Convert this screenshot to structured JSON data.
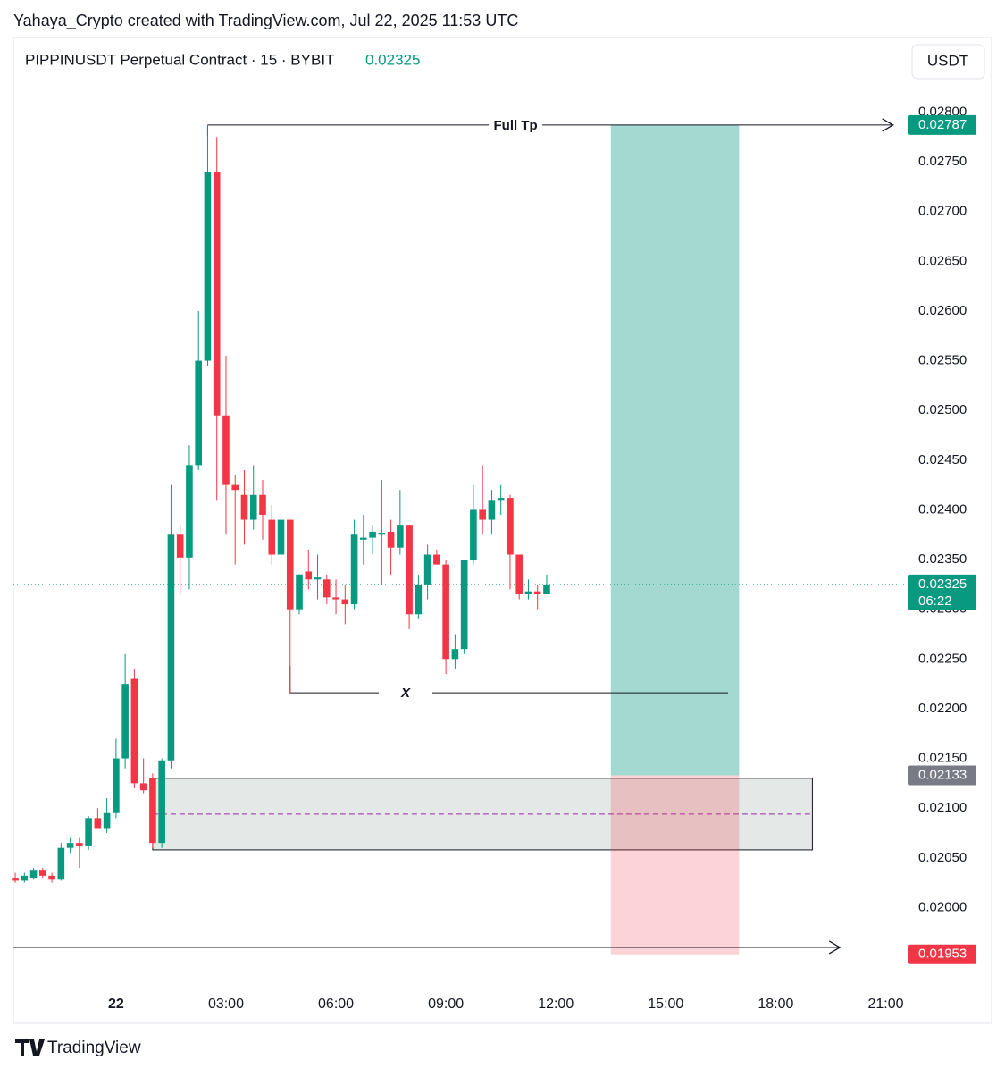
{
  "header": {
    "caption": "Yahaya_Crypto created with TradingView.com, Jul 22, 2025 11:53 UTC"
  },
  "footer": {
    "brand": "TradingView"
  },
  "chart_data": {
    "type": "candlestick",
    "title": "PIPPINUSDT Perpetual Contract · 15 · BYBIT",
    "currency": "USDT",
    "up_color": "#089981",
    "down_color": "#f23645",
    "grid": false,
    "countdown": "06:22",
    "x": [
      -2.75,
      -2.5,
      -2.25,
      -2,
      -1.75,
      -1.5,
      -1.25,
      -1,
      -0.75,
      -0.5,
      -0.25,
      0,
      0.25,
      0.5,
      0.75,
      1,
      1.25,
      1.5,
      1.75,
      2,
      2.25,
      2.5,
      2.75,
      3,
      3.25,
      3.5,
      3.75,
      4,
      4.25,
      4.5,
      4.75,
      5,
      5.25,
      5.5,
      5.75,
      6,
      6.25,
      6.5,
      6.75,
      7,
      7.25,
      7.5,
      7.75,
      8,
      8.25,
      8.5,
      8.75,
      9,
      9.25,
      9.5,
      9.75,
      10,
      10.25,
      10.5,
      10.75,
      11,
      11.25,
      11.5,
      11.75
    ],
    "open": [
      0.0203,
      0.02027,
      0.0203,
      0.02038,
      0.02032,
      0.02028,
      0.0206,
      0.02065,
      0.02062,
      0.0209,
      0.0208,
      0.02095,
      0.0215,
      0.0223,
      0.02125,
      0.0213,
      0.02065,
      0.02148,
      0.02375,
      0.02352,
      0.02445,
      0.0255,
      0.0274,
      0.02495,
      0.02425,
      0.02415,
      0.0239,
      0.02415,
      0.0239,
      0.02355,
      0.0239,
      0.023,
      0.02338,
      0.0233,
      0.0233,
      0.02312,
      0.0231,
      0.02305,
      0.0237,
      0.02372,
      0.02375,
      0.02378,
      0.02362,
      0.02385,
      0.02295,
      0.02325,
      0.02355,
      0.02345,
      0.0225,
      0.0226,
      0.0235,
      0.024,
      0.0239,
      0.0241,
      0.02412,
      0.02355,
      0.02315,
      0.02318,
      0.02315
    ],
    "high": [
      0.02035,
      0.02035,
      0.0204,
      0.0204,
      0.02035,
      0.02065,
      0.0207,
      0.0207,
      0.02092,
      0.021,
      0.0211,
      0.0217,
      0.02255,
      0.0224,
      0.0215,
      0.02135,
      0.0215,
      0.02425,
      0.02385,
      0.02465,
      0.026,
      0.02787,
      0.02775,
      0.02555,
      0.02435,
      0.0244,
      0.02445,
      0.0243,
      0.02405,
      0.0241,
      0.0239,
      0.02335,
      0.0236,
      0.02355,
      0.02335,
      0.0233,
      0.02325,
      0.0239,
      0.02395,
      0.02385,
      0.0243,
      0.0239,
      0.0242,
      0.02385,
      0.02335,
      0.02365,
      0.0236,
      0.0235,
      0.02275,
      0.0235,
      0.02425,
      0.02445,
      0.0242,
      0.02425,
      0.02415,
      0.02355,
      0.0233,
      0.02325,
      0.02335
    ],
    "low": [
      0.02025,
      0.02025,
      0.02028,
      0.0203,
      0.02025,
      0.02027,
      0.02055,
      0.0204,
      0.02058,
      0.0208,
      0.02075,
      0.0209,
      0.0214,
      0.0212,
      0.02115,
      0.0206,
      0.0206,
      0.0214,
      0.02315,
      0.0232,
      0.0244,
      0.02545,
      0.0241,
      0.02375,
      0.02345,
      0.02365,
      0.0238,
      0.0237,
      0.02345,
      0.02345,
      0.02215,
      0.02295,
      0.0232,
      0.0231,
      0.02305,
      0.02295,
      0.02285,
      0.023,
      0.02345,
      0.02355,
      0.02325,
      0.02335,
      0.02355,
      0.0228,
      0.0229,
      0.0231,
      0.02345,
      0.02235,
      0.0224,
      0.02255,
      0.02345,
      0.02375,
      0.02375,
      0.02395,
      0.0232,
      0.0231,
      0.0231,
      0.023,
      0.02315
    ],
    "close": [
      0.02027,
      0.02032,
      0.02038,
      0.02032,
      0.02028,
      0.0206,
      0.02065,
      0.02062,
      0.0209,
      0.0208,
      0.02095,
      0.0215,
      0.02225,
      0.02125,
      0.02118,
      0.02065,
      0.02148,
      0.02375,
      0.02352,
      0.02445,
      0.0255,
      0.0274,
      0.02495,
      0.02425,
      0.0242,
      0.0239,
      0.02415,
      0.02395,
      0.02355,
      0.0239,
      0.023,
      0.02335,
      0.0233,
      0.02332,
      0.02312,
      0.0231,
      0.02305,
      0.02375,
      0.02372,
      0.02378,
      0.02377,
      0.02362,
      0.02385,
      0.02295,
      0.02325,
      0.02355,
      0.02345,
      0.0225,
      0.0226,
      0.0235,
      0.024,
      0.0239,
      0.0241,
      0.02412,
      0.02355,
      0.02315,
      0.02318,
      0.02315,
      0.02325
    ],
    "xlim": [
      -2.8,
      21.5
    ],
    "ylim": [
      0.01924,
      0.02875
    ],
    "xticks": [
      {
        "value": 0,
        "label": "22"
      },
      {
        "value": 3,
        "label": "03:00"
      },
      {
        "value": 6,
        "label": "06:00"
      },
      {
        "value": 9,
        "label": "09:00"
      },
      {
        "value": 12,
        "label": "12:00"
      },
      {
        "value": 15,
        "label": "15:00"
      },
      {
        "value": 18,
        "label": "18:00"
      },
      {
        "value": 21,
        "label": "21:00"
      }
    ],
    "yticks": [
      {
        "value": 0.02,
        "label": "0.02000"
      },
      {
        "value": 0.0205,
        "label": "0.02050"
      },
      {
        "value": 0.021,
        "label": "0.02100"
      },
      {
        "value": 0.0215,
        "label": "0.02150"
      },
      {
        "value": 0.022,
        "label": "0.02200"
      },
      {
        "value": 0.0225,
        "label": "0.02250"
      },
      {
        "value": 0.023,
        "label": "0.02300"
      },
      {
        "value": 0.0235,
        "label": "0.02350"
      },
      {
        "value": 0.024,
        "label": "0.02400"
      },
      {
        "value": 0.0245,
        "label": "0.02450"
      },
      {
        "value": 0.025,
        "label": "0.02500"
      },
      {
        "value": 0.0255,
        "label": "0.02550"
      },
      {
        "value": 0.026,
        "label": "0.02600"
      },
      {
        "value": 0.0265,
        "label": "0.02650"
      },
      {
        "value": 0.027,
        "label": "0.02700"
      },
      {
        "value": 0.0275,
        "label": "0.02750"
      },
      {
        "value": 0.028,
        "label": "0.02800"
      }
    ],
    "zone": {
      "top": 0.0213,
      "bottom": 0.02058,
      "mid": 0.02094,
      "x": [
        1,
        19
      ]
    },
    "position": {
      "target": 0.02787,
      "entry": 0.02133,
      "stop": 0.01953,
      "x": [
        13.5,
        17
      ]
    },
    "annotations": [
      {
        "text": "Full Tp",
        "y": 0.02787,
        "x": [
          2.5,
          21.2
        ]
      },
      {
        "text": "X",
        "y": 0.02216,
        "x": [
          4.75,
          16.7
        ]
      }
    ],
    "stop_arrow": {
      "y": 0.0196,
      "x": [
        -2.8,
        19.75
      ]
    }
  }
}
